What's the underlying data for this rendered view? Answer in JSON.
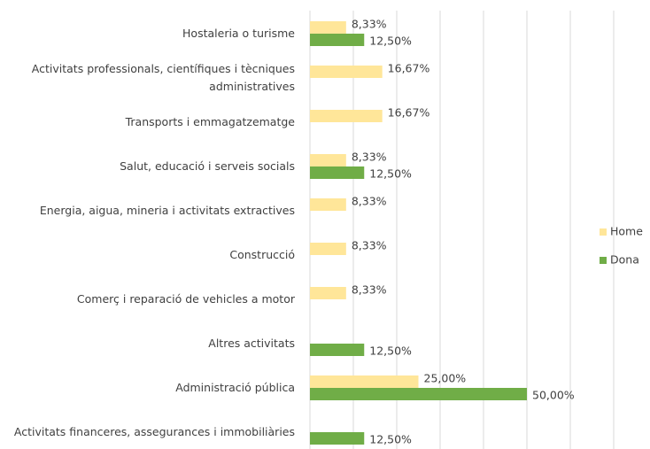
{
  "chart_data": {
    "type": "hbar",
    "categories": [
      "Hostaleria o turisme",
      "Activitats professionals, científiques i tècniques administratives",
      "Transports i emmagatzematge",
      "Salut, educació i serveis socials",
      "Energia, aigua, mineria i activitats extractives",
      "Construcció",
      "Comerç i reparació de vehicles a motor",
      "Altres activitats",
      "Administració pública",
      "Activitats financeres, assegurances i immobiliàries"
    ],
    "series": [
      {
        "name": "Home",
        "color": "#ffe699",
        "values": [
          8.33,
          16.67,
          16.67,
          8.33,
          8.33,
          8.33,
          8.33,
          null,
          25,
          null
        ],
        "value_labels": [
          "8,33%",
          "16,67%",
          "16,67%",
          "8,33%",
          "8,33%",
          "8,33%",
          "8,33%",
          null,
          "25,00%",
          null
        ]
      },
      {
        "name": "Dona",
        "color": "#70ad47",
        "values": [
          12.5,
          null,
          null,
          12.5,
          null,
          null,
          null,
          12.5,
          50,
          12.5
        ],
        "value_labels": [
          "12,50%",
          null,
          null,
          "12,50%",
          null,
          null,
          null,
          "12,50%",
          "50,00%",
          "12,50%"
        ]
      }
    ],
    "xlim": [
      0,
      70
    ],
    "xticks": [
      0,
      10,
      20,
      30,
      40,
      50,
      60,
      70
    ],
    "grid": true,
    "legend": "right"
  }
}
